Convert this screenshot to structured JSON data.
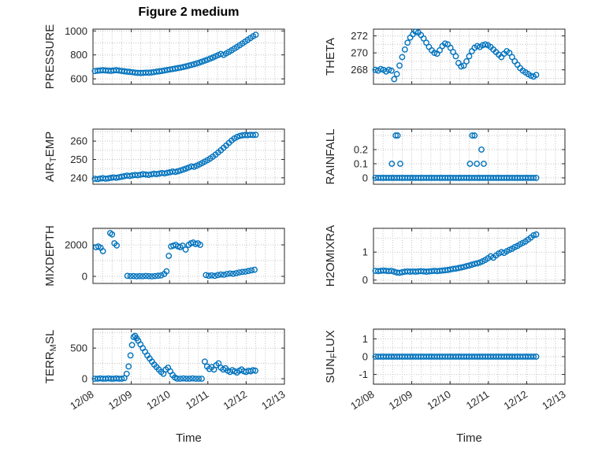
{
  "title": "Figure 2 medium",
  "time_axis": {
    "xlabel": "Time",
    "xlim": [
      0,
      5
    ],
    "xtick_vals": [
      0,
      1,
      2,
      3,
      4,
      5
    ],
    "xtick_labels": [
      "12/08",
      "12/09",
      "12/10",
      "12/11",
      "12/12",
      "12/13"
    ],
    "minor_step": 0.25
  },
  "style": {
    "marker_color": "#0072BD",
    "axis_color": "#262626",
    "grid_color": "#c3c3c3",
    "label_color": "#262626"
  },
  "common_x": [
    0.05,
    0.12,
    0.19,
    0.26,
    0.33,
    0.4,
    0.47,
    0.54,
    0.61,
    0.68,
    0.75,
    0.82,
    0.89,
    0.96,
    1.03,
    1.1,
    1.17,
    1.24,
    1.31,
    1.38,
    1.45,
    1.52,
    1.59,
    1.66,
    1.73,
    1.8,
    1.87,
    1.94,
    2.01,
    2.08,
    2.15,
    2.22,
    2.29,
    2.36,
    2.43,
    2.5,
    2.57,
    2.64,
    2.71,
    2.78,
    2.85,
    2.92,
    2.99,
    3.06,
    3.13,
    3.2,
    3.27,
    3.34,
    3.41,
    3.48,
    3.55,
    3.62,
    3.69,
    3.76,
    3.83,
    3.9,
    3.97,
    4.04,
    4.11,
    4.18,
    4.25
  ],
  "chart_data": [
    {
      "id": "pressure",
      "type": "scatter",
      "row": 0,
      "col": 0,
      "ylabel_parts": [
        {
          "text": "PRESSURE",
          "sub": false
        }
      ],
      "ylim": [
        555,
        1015
      ],
      "ytick_vals": [
        600,
        800,
        1000
      ],
      "ytick_labels": [
        "600",
        "800",
        "1000"
      ],
      "ygrid_step": 100,
      "show_xtick_labels": false,
      "show_xlabel": false,
      "use_common_x": true,
      "y": [
        665,
        668,
        670,
        672,
        670,
        668,
        667,
        670,
        672,
        669,
        666,
        663,
        660,
        658,
        655,
        652,
        650,
        649,
        650,
        652,
        651,
        653,
        656,
        660,
        663,
        666,
        670,
        674,
        678,
        682,
        686,
        690,
        694,
        699,
        704,
        710,
        716,
        722,
        729,
        736,
        744,
        752,
        760,
        769,
        778,
        788,
        798,
        808,
        800,
        812,
        825,
        838,
        852,
        866,
        880,
        895,
        910,
        925,
        940,
        955,
        968
      ]
    },
    {
      "id": "theta",
      "type": "scatter",
      "row": 0,
      "col": 1,
      "ylabel_parts": [
        {
          "text": "THETA",
          "sub": false
        }
      ],
      "ylim": [
        266.3,
        272.8
      ],
      "ytick_vals": [
        268,
        270,
        272
      ],
      "ytick_labels": [
        "268",
        "270",
        "272"
      ],
      "ygrid_step": 1,
      "show_xtick_labels": false,
      "show_xlabel": false,
      "use_common_x": true,
      "y": [
        268.0,
        267.9,
        268.1,
        268.0,
        267.8,
        268.0,
        267.9,
        266.9,
        267.5,
        268.5,
        269.5,
        270.4,
        271.2,
        271.8,
        272.2,
        272.5,
        272.4,
        272.1,
        271.7,
        271.2,
        270.7,
        270.3,
        270.0,
        269.9,
        270.3,
        270.8,
        271.1,
        271.0,
        270.6,
        270.1,
        269.6,
        268.8,
        268.4,
        268.5,
        269.0,
        269.6,
        270.2,
        270.6,
        270.8,
        270.7,
        270.9,
        271.0,
        270.9,
        270.7,
        270.4,
        270.1,
        269.8,
        269.5,
        269.9,
        270.2,
        270.0,
        269.5,
        269.0,
        268.6,
        268.2,
        267.9,
        267.7,
        267.5,
        267.3,
        267.2,
        267.4
      ]
    },
    {
      "id": "airtemp",
      "type": "scatter",
      "row": 1,
      "col": 0,
      "ylabel_parts": [
        {
          "text": "AIR",
          "sub": false
        },
        {
          "text": "T",
          "sub": true
        },
        {
          "text": "EMP",
          "sub": false
        }
      ],
      "ylim": [
        236.5,
        266.5
      ],
      "ytick_vals": [
        240,
        250,
        260
      ],
      "ytick_labels": [
        "240",
        "250",
        "260"
      ],
      "ygrid_step": 5,
      "show_xtick_labels": false,
      "show_xlabel": false,
      "use_common_x": true,
      "y": [
        239.5,
        239.3,
        239.6,
        239.8,
        239.5,
        239.7,
        240.0,
        240.2,
        240.0,
        240.3,
        240.6,
        240.9,
        241.2,
        241.0,
        241.3,
        241.6,
        241.4,
        241.7,
        242.0,
        241.8,
        241.6,
        241.9,
        242.2,
        242.0,
        242.3,
        242.6,
        242.4,
        242.7,
        243.0,
        243.4,
        243.2,
        243.6,
        244.0,
        244.5,
        245.0,
        245.6,
        246.2,
        246.0,
        246.6,
        247.3,
        248.0,
        248.8,
        249.6,
        250.5,
        251.5,
        252.6,
        253.8,
        255.0,
        256.3,
        257.6,
        259.0,
        260.3,
        261.4,
        262.2,
        262.8,
        263.1,
        263.3,
        263.2,
        263.4,
        263.3,
        263.4
      ]
    },
    {
      "id": "rainfall",
      "type": "scatter",
      "row": 1,
      "col": 1,
      "ylabel_parts": [
        {
          "text": "RAINFALL",
          "sub": false
        }
      ],
      "ylim": [
        -0.045,
        0.345
      ],
      "ytick_vals": [
        0,
        0.1,
        0.2
      ],
      "ytick_labels": [
        "0",
        "0.1",
        "0.2"
      ],
      "ygrid_step": 0.1,
      "show_xtick_labels": false,
      "show_xlabel": false,
      "use_common_x": true,
      "y": "zeros",
      "extra_points": [
        [
          0.48,
          0.1
        ],
        [
          0.58,
          0.3
        ],
        [
          0.63,
          0.3
        ],
        [
          0.7,
          0.1
        ],
        [
          2.52,
          0.1
        ],
        [
          2.58,
          0.3
        ],
        [
          2.64,
          0.3
        ],
        [
          2.7,
          0.1
        ],
        [
          2.82,
          0.2
        ],
        [
          2.88,
          0.1
        ]
      ]
    },
    {
      "id": "mixdepth",
      "type": "scatter",
      "row": 2,
      "col": 0,
      "ylabel_parts": [
        {
          "text": "MIXDEPTH",
          "sub": false
        }
      ],
      "ylim": [
        -450,
        3050
      ],
      "ytick_vals": [
        0,
        2000
      ],
      "ytick_labels": [
        "0",
        "2000"
      ],
      "ygrid_step": 1000,
      "show_xtick_labels": false,
      "show_xlabel": false,
      "points": [
        [
          0.08,
          1850
        ],
        [
          0.14,
          1900
        ],
        [
          0.2,
          1820
        ],
        [
          0.26,
          1600
        ],
        [
          0.45,
          2750
        ],
        [
          0.5,
          2660
        ],
        [
          0.56,
          2100
        ],
        [
          0.62,
          1960
        ],
        [
          0.9,
          30
        ],
        [
          0.98,
          10
        ],
        [
          1.06,
          20
        ],
        [
          1.14,
          0
        ],
        [
          1.22,
          15
        ],
        [
          1.3,
          5
        ],
        [
          1.38,
          25
        ],
        [
          1.46,
          10
        ],
        [
          1.54,
          0
        ],
        [
          1.62,
          20
        ],
        [
          1.7,
          40
        ],
        [
          1.78,
          60
        ],
        [
          1.86,
          150
        ],
        [
          1.92,
          320
        ],
        [
          1.98,
          1300
        ],
        [
          2.04,
          1900
        ],
        [
          2.1,
          1950
        ],
        [
          2.16,
          2000
        ],
        [
          2.22,
          1900
        ],
        [
          2.28,
          1850
        ],
        [
          2.34,
          1950
        ],
        [
          2.42,
          1700
        ],
        [
          2.5,
          2000
        ],
        [
          2.56,
          2100
        ],
        [
          2.62,
          2150
        ],
        [
          2.68,
          2050
        ],
        [
          2.74,
          2100
        ],
        [
          2.8,
          2000
        ],
        [
          2.95,
          80
        ],
        [
          3.02,
          40
        ],
        [
          3.1,
          60
        ],
        [
          3.18,
          30
        ],
        [
          3.26,
          80
        ],
        [
          3.34,
          120
        ],
        [
          3.42,
          100
        ],
        [
          3.5,
          150
        ],
        [
          3.58,
          180
        ],
        [
          3.66,
          160
        ],
        [
          3.74,
          200
        ],
        [
          3.82,
          250
        ],
        [
          3.9,
          280
        ],
        [
          3.98,
          300
        ],
        [
          4.06,
          340
        ],
        [
          4.14,
          380
        ],
        [
          4.22,
          420
        ]
      ]
    },
    {
      "id": "h2omixra",
      "type": "scatter",
      "row": 2,
      "col": 1,
      "ylabel_parts": [
        {
          "text": "H2OMIXRA",
          "sub": false
        }
      ],
      "ylim": [
        -0.12,
        1.85
      ],
      "ytick_vals": [
        0,
        1
      ],
      "ytick_labels": [
        "0",
        "1"
      ],
      "ygrid_step": 0.5,
      "show_xtick_labels": false,
      "show_xlabel": false,
      "use_common_x": true,
      "y": [
        0.33,
        0.32,
        0.33,
        0.34,
        0.33,
        0.32,
        0.33,
        0.3,
        0.27,
        0.26,
        0.28,
        0.3,
        0.31,
        0.3,
        0.31,
        0.3,
        0.31,
        0.32,
        0.31,
        0.3,
        0.31,
        0.32,
        0.33,
        0.32,
        0.33,
        0.34,
        0.35,
        0.36,
        0.38,
        0.4,
        0.41,
        0.43,
        0.45,
        0.47,
        0.5,
        0.52,
        0.55,
        0.58,
        0.6,
        0.63,
        0.67,
        0.72,
        0.78,
        0.85,
        0.8,
        0.88,
        0.95,
        1.0,
        0.97,
        1.03,
        1.08,
        1.12,
        1.18,
        1.22,
        1.28,
        1.33,
        1.38,
        1.45,
        1.52,
        1.6,
        1.63
      ]
    },
    {
      "id": "terrmsl",
      "type": "scatter",
      "row": 3,
      "col": 0,
      "ylabel_parts": [
        {
          "text": "TERR",
          "sub": false
        },
        {
          "text": "M",
          "sub": true
        },
        {
          "text": "SL",
          "sub": false
        }
      ],
      "ylim": [
        -90,
        810
      ],
      "ytick_vals": [
        0,
        500
      ],
      "ytick_labels": [
        "0",
        "500"
      ],
      "ygrid_step": 250,
      "show_xtick_labels": true,
      "show_xlabel": true,
      "points": [
        [
          0.05,
          0
        ],
        [
          0.12,
          0
        ],
        [
          0.19,
          5
        ],
        [
          0.26,
          0
        ],
        [
          0.33,
          0
        ],
        [
          0.4,
          5
        ],
        [
          0.47,
          0
        ],
        [
          0.54,
          0
        ],
        [
          0.61,
          5
        ],
        [
          0.68,
          0
        ],
        [
          0.75,
          0
        ],
        [
          0.82,
          10
        ],
        [
          0.88,
          80
        ],
        [
          0.93,
          200
        ],
        [
          0.98,
          380
        ],
        [
          1.02,
          550
        ],
        [
          1.06,
          680
        ],
        [
          1.1,
          700
        ],
        [
          1.14,
          660
        ],
        [
          1.18,
          620
        ],
        [
          1.24,
          560
        ],
        [
          1.3,
          500
        ],
        [
          1.36,
          440
        ],
        [
          1.42,
          380
        ],
        [
          1.48,
          330
        ],
        [
          1.54,
          280
        ],
        [
          1.6,
          230
        ],
        [
          1.66,
          190
        ],
        [
          1.72,
          150
        ],
        [
          1.78,
          110
        ],
        [
          1.84,
          80
        ],
        [
          1.9,
          150
        ],
        [
          1.96,
          180
        ],
        [
          2.02,
          120
        ],
        [
          2.08,
          60
        ],
        [
          2.14,
          20
        ],
        [
          2.2,
          0
        ],
        [
          2.28,
          0
        ],
        [
          2.36,
          5
        ],
        [
          2.44,
          0
        ],
        [
          2.52,
          0
        ],
        [
          2.6,
          5
        ],
        [
          2.68,
          0
        ],
        [
          2.76,
          0
        ],
        [
          2.84,
          0
        ],
        [
          2.92,
          280
        ],
        [
          2.98,
          200
        ],
        [
          3.04,
          160
        ],
        [
          3.1,
          190
        ],
        [
          3.16,
          150
        ],
        [
          3.22,
          220
        ],
        [
          3.28,
          250
        ],
        [
          3.34,
          180
        ],
        [
          3.4,
          150
        ],
        [
          3.46,
          170
        ],
        [
          3.52,
          130
        ],
        [
          3.58,
          110
        ],
        [
          3.64,
          140
        ],
        [
          3.7,
          120
        ],
        [
          3.76,
          100
        ],
        [
          3.82,
          130
        ],
        [
          3.88,
          150
        ],
        [
          3.94,
          120
        ],
        [
          4.0,
          110
        ],
        [
          4.06,
          130
        ],
        [
          4.12,
          120
        ],
        [
          4.18,
          140
        ],
        [
          4.24,
          130
        ]
      ]
    },
    {
      "id": "sunflux",
      "type": "scatter",
      "row": 3,
      "col": 1,
      "ylabel_parts": [
        {
          "text": "SUN",
          "sub": false
        },
        {
          "text": "F",
          "sub": true
        },
        {
          "text": "LUX",
          "sub": false
        }
      ],
      "ylim": [
        -1.55,
        1.55
      ],
      "ytick_vals": [
        -1,
        0,
        1
      ],
      "ytick_labels": [
        "-1",
        "0",
        "1"
      ],
      "ygrid_step": 0.5,
      "show_xtick_labels": true,
      "show_xlabel": true,
      "use_common_x": true,
      "y": "zeros"
    }
  ]
}
